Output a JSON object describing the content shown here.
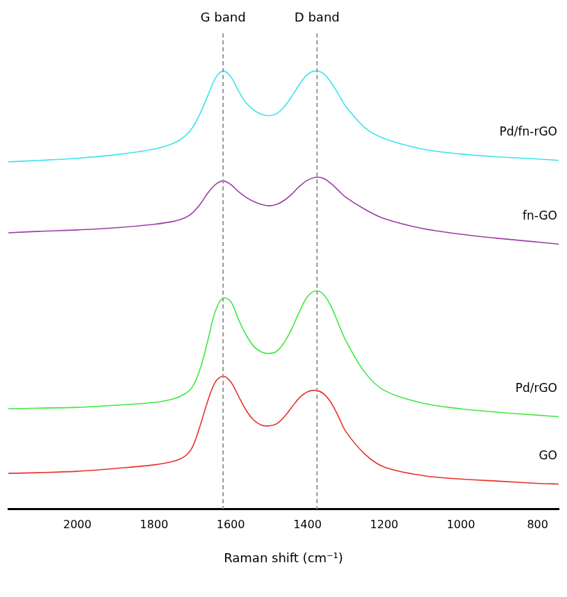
{
  "chart_data": {
    "type": "line",
    "x_label": "Raman shift (cm⁻¹)",
    "x": [
      2180,
      2100,
      2000,
      1900,
      1800,
      1750,
      1720,
      1700,
      1680,
      1660,
      1640,
      1620,
      1600,
      1580,
      1560,
      1540,
      1520,
      1500,
      1480,
      1460,
      1440,
      1420,
      1400,
      1380,
      1360,
      1340,
      1320,
      1300,
      1250,
      1200,
      1100,
      1000,
      900,
      800,
      745
    ],
    "series": [
      {
        "name": "Pd/fn-rGO",
        "color": "#3ce3ee",
        "values": [
          48.9,
          49.1,
          49.4,
          49.9,
          50.7,
          51.5,
          52.5,
          53.7,
          55.7,
          58.2,
          60.7,
          61.7,
          60.9,
          58.9,
          57.2,
          56.2,
          55.6,
          55.4,
          55.7,
          56.7,
          58.2,
          59.9,
          61.2,
          61.7,
          61.4,
          60.2,
          58.5,
          56.7,
          53.7,
          52.2,
          50.7,
          50.0,
          49.6,
          49.3,
          49.1
        ]
      },
      {
        "name": "fn-GO",
        "color": "#9a3fa2",
        "values": [
          38.9,
          39.1,
          39.3,
          39.6,
          40.1,
          40.5,
          41.0,
          41.7,
          42.9,
          44.5,
          45.7,
          46.2,
          45.7,
          44.7,
          43.9,
          43.3,
          42.9,
          42.7,
          42.9,
          43.5,
          44.4,
          45.5,
          46.3,
          46.7,
          46.6,
          45.9,
          44.9,
          43.9,
          42.2,
          40.9,
          39.5,
          38.7,
          38.1,
          37.6,
          37.3
        ]
      },
      {
        "name": "Pd/rGO",
        "color": "#3ee83e",
        "values": [
          14.1,
          14.2,
          14.3,
          14.6,
          15.0,
          15.5,
          16.2,
          17.2,
          19.7,
          23.7,
          27.9,
          29.7,
          29.2,
          26.7,
          24.5,
          22.9,
          22.1,
          21.9,
          22.2,
          23.5,
          25.5,
          27.9,
          29.9,
          30.7,
          30.3,
          28.7,
          26.2,
          23.7,
          19.2,
          16.7,
          14.9,
          14.1,
          13.6,
          13.2,
          13.0
        ]
      },
      {
        "name": "GO",
        "color": "#e8302a",
        "values": [
          5.0,
          5.1,
          5.3,
          5.7,
          6.2,
          6.7,
          7.4,
          8.7,
          11.7,
          15.2,
          17.9,
          18.7,
          17.9,
          15.9,
          13.9,
          12.5,
          11.8,
          11.7,
          12.0,
          13.0,
          14.4,
          15.7,
          16.5,
          16.7,
          16.3,
          15.1,
          13.1,
          10.9,
          7.7,
          5.9,
          4.7,
          4.2,
          3.9,
          3.6,
          3.5
        ]
      }
    ],
    "annotations": [
      {
        "label": "G band",
        "x": 1620
      },
      {
        "label": "D band",
        "x": 1375
      }
    ],
    "xlim": [
      2180,
      745
    ],
    "xticks": [
      2000,
      1800,
      1600,
      1400,
      1200,
      1000,
      800
    ],
    "ylim": [
      0,
      67
    ],
    "tick_labels": "x",
    "grid": false
  }
}
